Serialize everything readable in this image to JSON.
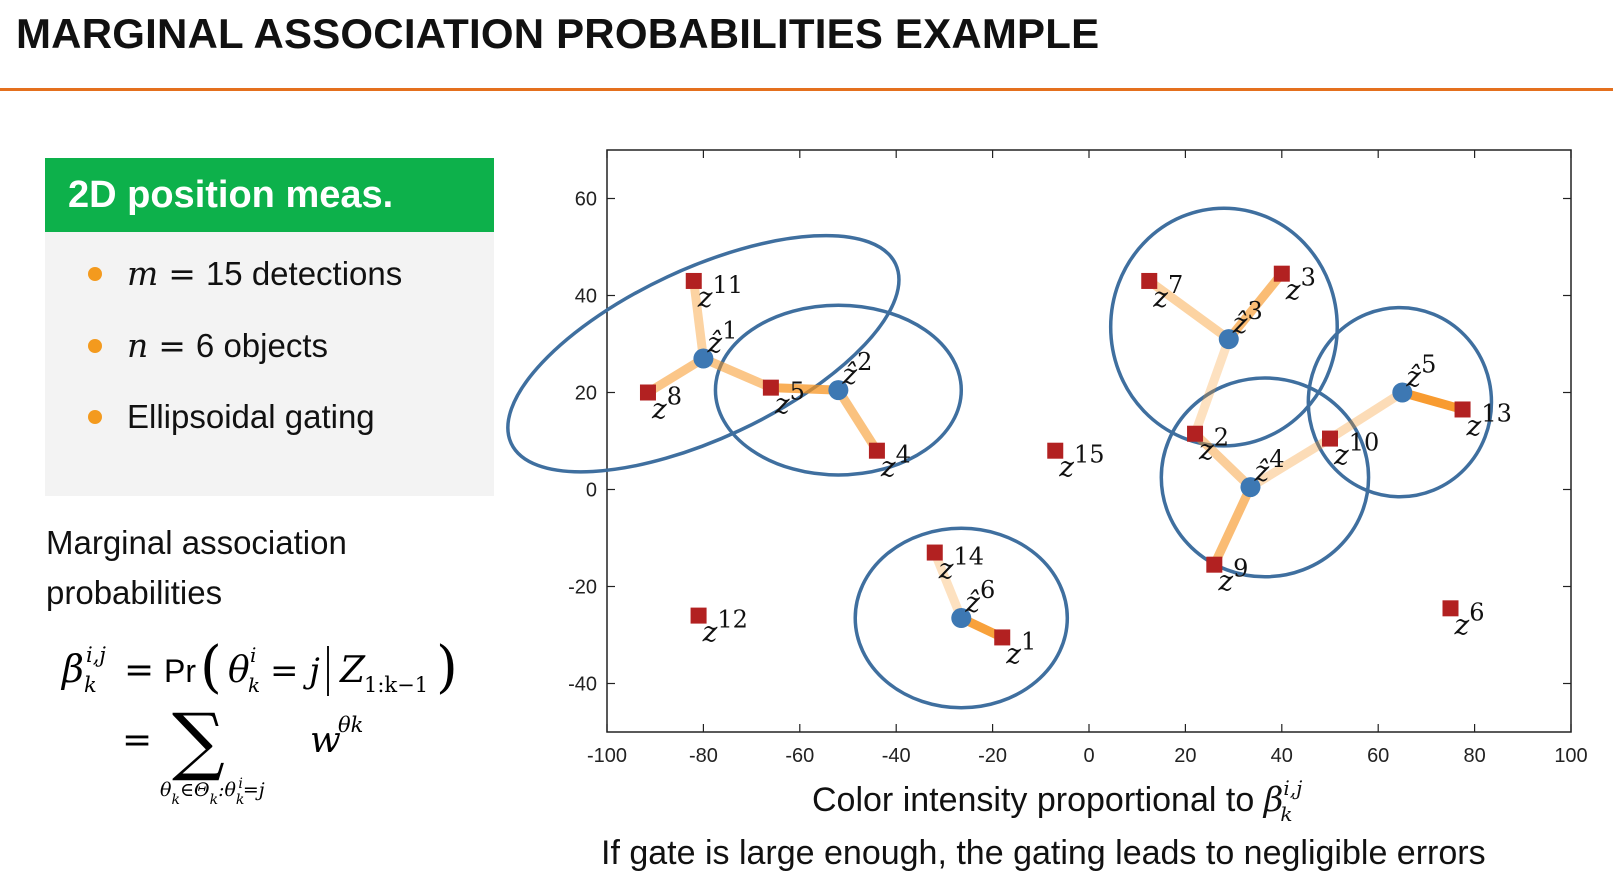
{
  "slide": {
    "title": "MARGINAL ASSOCIATION PROBABILITIES EXAMPLE"
  },
  "info_box": {
    "heading": "2D position meas.",
    "bullets": [
      {
        "var": "m",
        "op": "=",
        "text": "15 detections"
      },
      {
        "var": "n",
        "op": "=",
        "text": "6 objects"
      },
      {
        "var": "",
        "op": "",
        "text": "Ellipsoidal gating"
      }
    ]
  },
  "marginal_text": "Marginal association probabilities",
  "formula": {
    "line1_lhs": "β",
    "line1_lhs_sup": "i,j",
    "line1_lhs_sub": "k",
    "eq": "=",
    "pr": "Pr",
    "theta": "θ",
    "theta_sup": "i",
    "theta_sub": "k",
    "eq_j": "= j",
    "z": "Z",
    "z_sub": "1:k−1",
    "sum_symbol": "∑",
    "sum_index": "θ",
    "sum_index_rest": "k∈Θk:θik=j",
    "w": "w",
    "w_sup": "θk"
  },
  "captions": {
    "line1": "Color intensity proportional to",
    "line1_math": "β",
    "line1_math_sup": "i,j",
    "line1_math_sub": "k",
    "line2": "If gate is large enough, the gating leads to negligible errors"
  },
  "colors": {
    "accent_rule": "#e4701e",
    "header_green": "#0db14b",
    "bullet_orange": "#f39a1e",
    "object_blue": "#3d78b3",
    "gate_blue": "#3f6f9f",
    "detection_red": "#b22121",
    "assoc_orange": "#f7931e"
  },
  "chart_data": {
    "type": "scatter",
    "title": "",
    "xlabel": "",
    "ylabel": "",
    "xlim": [
      -100,
      100
    ],
    "ylim": [
      -50,
      70
    ],
    "xticks": [
      -100,
      -80,
      -60,
      -40,
      -20,
      0,
      20,
      40,
      60,
      80,
      100
    ],
    "yticks": [
      -40,
      -20,
      0,
      20,
      40,
      60
    ],
    "grid": false,
    "objects": [
      {
        "label": "ẑ1",
        "x": -80,
        "y": 27
      },
      {
        "label": "ẑ2",
        "x": -52,
        "y": 20.5
      },
      {
        "label": "ẑ3",
        "x": 29,
        "y": 31
      },
      {
        "label": "ẑ4",
        "x": 33.5,
        "y": 0.5
      },
      {
        "label": "ẑ5",
        "x": 65,
        "y": 20
      },
      {
        "label": "ẑ6",
        "x": -26.5,
        "y": -26.5
      }
    ],
    "detections": [
      {
        "label": "z1",
        "x": -18,
        "y": -30.5
      },
      {
        "label": "z2",
        "x": 22,
        "y": 11.5
      },
      {
        "label": "z3",
        "x": 40,
        "y": 44.5
      },
      {
        "label": "z4",
        "x": -44,
        "y": 8
      },
      {
        "label": "z5",
        "x": -66,
        "y": 21
      },
      {
        "label": "z6",
        "x": 75,
        "y": -24.5
      },
      {
        "label": "z7",
        "x": 12.5,
        "y": 43
      },
      {
        "label": "z8",
        "x": -91.5,
        "y": 20
      },
      {
        "label": "z9",
        "x": 26,
        "y": -15.5
      },
      {
        "label": "z10",
        "x": 50,
        "y": 10.5
      },
      {
        "label": "z11",
        "x": -82,
        "y": 43
      },
      {
        "label": "z12",
        "x": -81,
        "y": -26
      },
      {
        "label": "z13",
        "x": 77.5,
        "y": 16.5
      },
      {
        "label": "z14",
        "x": -32,
        "y": -13
      },
      {
        "label": "z15",
        "x": -7,
        "y": 8
      }
    ],
    "gates": [
      {
        "object": "ẑ1",
        "cx": -80,
        "cy": 28,
        "rx": 44,
        "ry": 17.5,
        "angle_deg": -25
      },
      {
        "object": "ẑ2",
        "cx": -52,
        "cy": 20.5,
        "rx": 25.5,
        "ry": 17.5,
        "angle_deg": 0
      },
      {
        "object": "ẑ3",
        "cx": 28,
        "cy": 33.5,
        "rx": 23.5,
        "ry": 24.5,
        "angle_deg": 0
      },
      {
        "object": "ẑ4",
        "cx": 36.5,
        "cy": 2.5,
        "rx": 21.5,
        "ry": 20.5,
        "angle_deg": 0
      },
      {
        "object": "ẑ5",
        "cx": 64.5,
        "cy": 18,
        "rx": 19,
        "ry": 19.5,
        "angle_deg": 0
      },
      {
        "object": "ẑ6",
        "cx": -26.5,
        "cy": -26.5,
        "rx": 22,
        "ry": 18.5,
        "angle_deg": 0
      }
    ],
    "associations": [
      {
        "object": "ẑ1",
        "detection": "z11",
        "beta": 0.3
      },
      {
        "object": "ẑ1",
        "detection": "z8",
        "beta": 0.45
      },
      {
        "object": "ẑ1",
        "detection": "z5",
        "beta": 0.45
      },
      {
        "object": "ẑ2",
        "detection": "z5",
        "beta": 0.7
      },
      {
        "object": "ẑ2",
        "detection": "z4",
        "beta": 0.5
      },
      {
        "object": "ẑ3",
        "detection": "z7",
        "beta": 0.3
      },
      {
        "object": "ẑ3",
        "detection": "z3",
        "beta": 0.55
      },
      {
        "object": "ẑ3",
        "detection": "z2",
        "beta": 0.15
      },
      {
        "object": "ẑ4",
        "detection": "z2",
        "beta": 0.35
      },
      {
        "object": "ẑ4",
        "detection": "z9",
        "beta": 0.55
      },
      {
        "object": "ẑ4",
        "detection": "z10",
        "beta": 0.2
      },
      {
        "object": "ẑ5",
        "detection": "z10",
        "beta": 0.2
      },
      {
        "object": "ẑ5",
        "detection": "z13",
        "beta": 0.9
      },
      {
        "object": "ẑ6",
        "detection": "z14",
        "beta": 0.15
      },
      {
        "object": "ẑ6",
        "detection": "z1",
        "beta": 0.85
      }
    ]
  }
}
